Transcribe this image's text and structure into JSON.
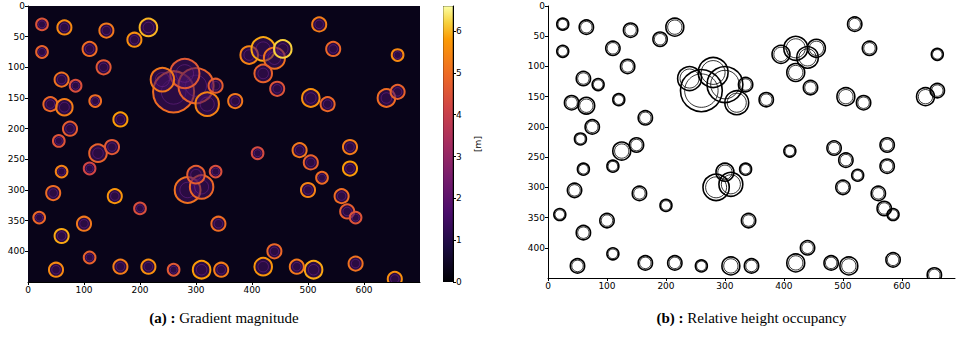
{
  "chart_data": [
    {
      "type": "heatmap_image",
      "caption": "(a) : Gradient magnitude",
      "xlim": [
        0,
        700
      ],
      "xticks": [
        0,
        100,
        200,
        300,
        400,
        500,
        600
      ],
      "ylim": [
        450,
        0
      ],
      "yticks": [
        0,
        50,
        100,
        150,
        200,
        250,
        300,
        350,
        400
      ],
      "grid": false,
      "background_value": 0.3,
      "colorbar": {
        "range": [
          0,
          6.6
        ],
        "ticks": [
          0,
          1,
          2,
          3,
          4,
          5,
          6
        ],
        "label": "[m]"
      },
      "crowns": [
        {
          "x": 25,
          "y": 30,
          "r": 10,
          "value": 4.5
        },
        {
          "x": 65,
          "y": 35,
          "r": 12,
          "value": 5.5
        },
        {
          "x": 25,
          "y": 75,
          "r": 10,
          "value": 4.8
        },
        {
          "x": 140,
          "y": 40,
          "r": 12,
          "value": 5.2
        },
        {
          "x": 190,
          "y": 55,
          "r": 12,
          "value": 5.6
        },
        {
          "x": 215,
          "y": 35,
          "r": 15,
          "value": 6.0
        },
        {
          "x": 110,
          "y": 70,
          "r": 12,
          "value": 5.0
        },
        {
          "x": 135,
          "y": 100,
          "r": 12,
          "value": 4.6
        },
        {
          "x": 60,
          "y": 120,
          "r": 12,
          "value": 5.1
        },
        {
          "x": 85,
          "y": 130,
          "r": 10,
          "value": 4.4
        },
        {
          "x": 40,
          "y": 160,
          "r": 12,
          "value": 4.9
        },
        {
          "x": 65,
          "y": 165,
          "r": 14,
          "value": 5.3
        },
        {
          "x": 75,
          "y": 200,
          "r": 12,
          "value": 4.7
        },
        {
          "x": 55,
          "y": 220,
          "r": 10,
          "value": 4.5
        },
        {
          "x": 120,
          "y": 155,
          "r": 10,
          "value": 5.0
        },
        {
          "x": 165,
          "y": 185,
          "r": 12,
          "value": 5.8
        },
        {
          "x": 125,
          "y": 240,
          "r": 15,
          "value": 4.8
        },
        {
          "x": 150,
          "y": 230,
          "r": 12,
          "value": 4.6
        },
        {
          "x": 110,
          "y": 265,
          "r": 10,
          "value": 4.2
        },
        {
          "x": 60,
          "y": 270,
          "r": 10,
          "value": 5.4
        },
        {
          "x": 45,
          "y": 305,
          "r": 12,
          "value": 5.0
        },
        {
          "x": 20,
          "y": 345,
          "r": 10,
          "value": 4.9
        },
        {
          "x": 60,
          "y": 375,
          "r": 12,
          "value": 5.9
        },
        {
          "x": 100,
          "y": 355,
          "r": 12,
          "value": 5.2
        },
        {
          "x": 155,
          "y": 310,
          "r": 12,
          "value": 5.7
        },
        {
          "x": 50,
          "y": 430,
          "r": 12,
          "value": 5.5
        },
        {
          "x": 110,
          "y": 410,
          "r": 10,
          "value": 4.8
        },
        {
          "x": 165,
          "y": 425,
          "r": 12,
          "value": 5.3
        },
        {
          "x": 200,
          "y": 330,
          "r": 10,
          "value": 4.4
        },
        {
          "x": 260,
          "y": 140,
          "r": 35,
          "value": 5.0
        },
        {
          "x": 300,
          "y": 130,
          "r": 30,
          "value": 4.8
        },
        {
          "x": 280,
          "y": 110,
          "r": 25,
          "value": 4.6
        },
        {
          "x": 240,
          "y": 120,
          "r": 20,
          "value": 5.2
        },
        {
          "x": 320,
          "y": 160,
          "r": 20,
          "value": 5.4
        },
        {
          "x": 285,
          "y": 300,
          "r": 22,
          "value": 5.1
        },
        {
          "x": 310,
          "y": 295,
          "r": 20,
          "value": 4.9
        },
        {
          "x": 300,
          "y": 275,
          "r": 15,
          "value": 4.7
        },
        {
          "x": 215,
          "y": 425,
          "r": 12,
          "value": 5.6
        },
        {
          "x": 260,
          "y": 430,
          "r": 10,
          "value": 4.6
        },
        {
          "x": 310,
          "y": 430,
          "r": 15,
          "value": 5.8
        },
        {
          "x": 340,
          "y": 355,
          "r": 12,
          "value": 5.0
        },
        {
          "x": 345,
          "y": 430,
          "r": 12,
          "value": 5.3
        },
        {
          "x": 335,
          "y": 130,
          "r": 12,
          "value": 4.7
        },
        {
          "x": 370,
          "y": 155,
          "r": 12,
          "value": 5.2
        },
        {
          "x": 395,
          "y": 80,
          "r": 15,
          "value": 5.4
        },
        {
          "x": 420,
          "y": 70,
          "r": 20,
          "value": 5.9
        },
        {
          "x": 440,
          "y": 85,
          "r": 18,
          "value": 5.1
        },
        {
          "x": 455,
          "y": 70,
          "r": 15,
          "value": 6.2
        },
        {
          "x": 420,
          "y": 110,
          "r": 15,
          "value": 4.8
        },
        {
          "x": 445,
          "y": 135,
          "r": 12,
          "value": 4.5
        },
        {
          "x": 410,
          "y": 240,
          "r": 10,
          "value": 4.3
        },
        {
          "x": 420,
          "y": 425,
          "r": 15,
          "value": 5.7
        },
        {
          "x": 440,
          "y": 400,
          "r": 12,
          "value": 4.9
        },
        {
          "x": 485,
          "y": 235,
          "r": 12,
          "value": 5.2
        },
        {
          "x": 505,
          "y": 255,
          "r": 12,
          "value": 4.8
        },
        {
          "x": 525,
          "y": 280,
          "r": 10,
          "value": 5.0
        },
        {
          "x": 500,
          "y": 300,
          "r": 12,
          "value": 5.4
        },
        {
          "x": 505,
          "y": 150,
          "r": 15,
          "value": 5.6
        },
        {
          "x": 535,
          "y": 160,
          "r": 12,
          "value": 4.9
        },
        {
          "x": 575,
          "y": 230,
          "r": 12,
          "value": 5.3
        },
        {
          "x": 575,
          "y": 265,
          "r": 12,
          "value": 5.8
        },
        {
          "x": 560,
          "y": 310,
          "r": 12,
          "value": 5.0
        },
        {
          "x": 570,
          "y": 335,
          "r": 12,
          "value": 4.7
        },
        {
          "x": 585,
          "y": 345,
          "r": 10,
          "value": 4.5
        },
        {
          "x": 585,
          "y": 420,
          "r": 12,
          "value": 5.1
        },
        {
          "x": 510,
          "y": 430,
          "r": 15,
          "value": 5.9
        },
        {
          "x": 480,
          "y": 425,
          "r": 12,
          "value": 5.2
        },
        {
          "x": 640,
          "y": 150,
          "r": 15,
          "value": 5.0
        },
        {
          "x": 660,
          "y": 140,
          "r": 12,
          "value": 4.8
        },
        {
          "x": 660,
          "y": 80,
          "r": 10,
          "value": 5.5
        },
        {
          "x": 545,
          "y": 70,
          "r": 12,
          "value": 4.9
        },
        {
          "x": 520,
          "y": 30,
          "r": 12,
          "value": 5.3
        },
        {
          "x": 655,
          "y": 445,
          "r": 12,
          "value": 5.6
        },
        {
          "x": 335,
          "y": 270,
          "r": 10,
          "value": 4.4
        }
      ]
    },
    {
      "type": "binary_image",
      "caption": "(b) : Relative height occupancy",
      "xlim": [
        0,
        690
      ],
      "xticks": [
        0,
        100,
        200,
        300,
        400,
        500,
        600
      ],
      "ylim": [
        450,
        0
      ],
      "yticks": [
        0,
        50,
        100,
        150,
        200,
        250,
        300,
        350,
        400
      ],
      "grid": false,
      "crowns": [
        {
          "x": 25,
          "y": 30,
          "r": 10
        },
        {
          "x": 65,
          "y": 35,
          "r": 12
        },
        {
          "x": 25,
          "y": 75,
          "r": 10
        },
        {
          "x": 140,
          "y": 40,
          "r": 12
        },
        {
          "x": 190,
          "y": 55,
          "r": 12
        },
        {
          "x": 215,
          "y": 35,
          "r": 15
        },
        {
          "x": 110,
          "y": 70,
          "r": 12
        },
        {
          "x": 135,
          "y": 100,
          "r": 12
        },
        {
          "x": 60,
          "y": 120,
          "r": 12
        },
        {
          "x": 85,
          "y": 130,
          "r": 10
        },
        {
          "x": 40,
          "y": 160,
          "r": 12
        },
        {
          "x": 65,
          "y": 165,
          "r": 14
        },
        {
          "x": 75,
          "y": 200,
          "r": 12
        },
        {
          "x": 55,
          "y": 220,
          "r": 10
        },
        {
          "x": 120,
          "y": 155,
          "r": 10
        },
        {
          "x": 165,
          "y": 185,
          "r": 12
        },
        {
          "x": 125,
          "y": 240,
          "r": 15
        },
        {
          "x": 150,
          "y": 230,
          "r": 12
        },
        {
          "x": 110,
          "y": 265,
          "r": 10
        },
        {
          "x": 60,
          "y": 270,
          "r": 10
        },
        {
          "x": 45,
          "y": 305,
          "r": 12
        },
        {
          "x": 20,
          "y": 345,
          "r": 10
        },
        {
          "x": 60,
          "y": 375,
          "r": 12
        },
        {
          "x": 100,
          "y": 355,
          "r": 12
        },
        {
          "x": 155,
          "y": 310,
          "r": 12
        },
        {
          "x": 50,
          "y": 430,
          "r": 12
        },
        {
          "x": 110,
          "y": 410,
          "r": 10
        },
        {
          "x": 165,
          "y": 425,
          "r": 12
        },
        {
          "x": 200,
          "y": 330,
          "r": 10
        },
        {
          "x": 260,
          "y": 140,
          "r": 35
        },
        {
          "x": 300,
          "y": 130,
          "r": 30
        },
        {
          "x": 280,
          "y": 110,
          "r": 25
        },
        {
          "x": 240,
          "y": 120,
          "r": 20
        },
        {
          "x": 320,
          "y": 160,
          "r": 20
        },
        {
          "x": 285,
          "y": 300,
          "r": 22
        },
        {
          "x": 310,
          "y": 295,
          "r": 20
        },
        {
          "x": 300,
          "y": 275,
          "r": 15
        },
        {
          "x": 215,
          "y": 425,
          "r": 12
        },
        {
          "x": 260,
          "y": 430,
          "r": 10
        },
        {
          "x": 310,
          "y": 430,
          "r": 15
        },
        {
          "x": 340,
          "y": 355,
          "r": 12
        },
        {
          "x": 345,
          "y": 430,
          "r": 12
        },
        {
          "x": 335,
          "y": 130,
          "r": 12
        },
        {
          "x": 370,
          "y": 155,
          "r": 12
        },
        {
          "x": 395,
          "y": 80,
          "r": 15
        },
        {
          "x": 420,
          "y": 70,
          "r": 20
        },
        {
          "x": 440,
          "y": 85,
          "r": 18
        },
        {
          "x": 455,
          "y": 70,
          "r": 15
        },
        {
          "x": 420,
          "y": 110,
          "r": 15
        },
        {
          "x": 445,
          "y": 135,
          "r": 12
        },
        {
          "x": 410,
          "y": 240,
          "r": 10
        },
        {
          "x": 420,
          "y": 425,
          "r": 15
        },
        {
          "x": 440,
          "y": 400,
          "r": 12
        },
        {
          "x": 485,
          "y": 235,
          "r": 12
        },
        {
          "x": 505,
          "y": 255,
          "r": 12
        },
        {
          "x": 525,
          "y": 280,
          "r": 10
        },
        {
          "x": 500,
          "y": 300,
          "r": 12
        },
        {
          "x": 505,
          "y": 150,
          "r": 15
        },
        {
          "x": 535,
          "y": 160,
          "r": 12
        },
        {
          "x": 575,
          "y": 230,
          "r": 12
        },
        {
          "x": 575,
          "y": 265,
          "r": 12
        },
        {
          "x": 560,
          "y": 310,
          "r": 12
        },
        {
          "x": 570,
          "y": 335,
          "r": 12
        },
        {
          "x": 585,
          "y": 345,
          "r": 10
        },
        {
          "x": 585,
          "y": 420,
          "r": 12
        },
        {
          "x": 510,
          "y": 430,
          "r": 15
        },
        {
          "x": 480,
          "y": 425,
          "r": 12
        },
        {
          "x": 640,
          "y": 150,
          "r": 15
        },
        {
          "x": 660,
          "y": 140,
          "r": 12
        },
        {
          "x": 660,
          "y": 80,
          "r": 10
        },
        {
          "x": 545,
          "y": 70,
          "r": 12
        },
        {
          "x": 520,
          "y": 30,
          "r": 12
        },
        {
          "x": 655,
          "y": 445,
          "r": 12
        },
        {
          "x": 335,
          "y": 270,
          "r": 10
        }
      ]
    }
  ]
}
